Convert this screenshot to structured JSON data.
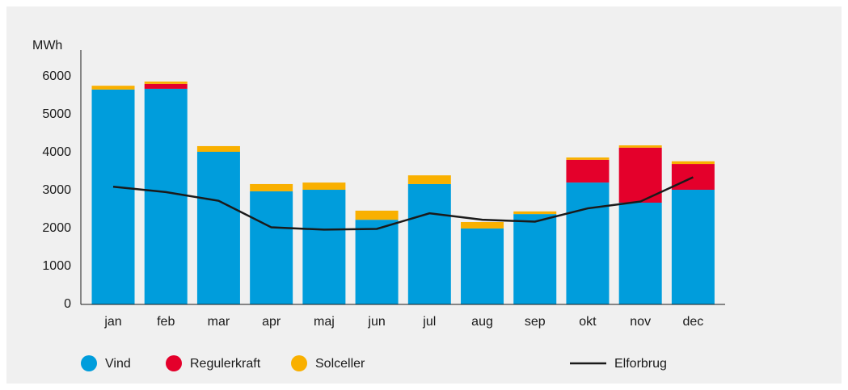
{
  "chart_data": {
    "type": "bar",
    "stacked": true,
    "ylabel": "MWh",
    "categories": [
      "jan",
      "feb",
      "mar",
      "apr",
      "maj",
      "jun",
      "jul",
      "aug",
      "sep",
      "okt",
      "nov",
      "dec"
    ],
    "series": [
      {
        "name": "Vind",
        "color": "#009ddc",
        "values": [
          5660,
          5680,
          4020,
          2980,
          3020,
          2230,
          3170,
          2000,
          2380,
          3210,
          2680,
          3020
        ]
      },
      {
        "name": "Regulerkraft",
        "color": "#e4002b",
        "values": [
          0,
          130,
          0,
          0,
          0,
          0,
          0,
          0,
          0,
          600,
          1450,
          680
        ]
      },
      {
        "name": "Solceller",
        "color": "#f9b000",
        "values": [
          100,
          60,
          150,
          190,
          190,
          240,
          230,
          170,
          70,
          60,
          60,
          70
        ]
      },
      {
        "name": "Elforbrug",
        "type": "line",
        "color": "#1a1a1a",
        "values": [
          3100,
          2960,
          2730,
          2030,
          1970,
          1990,
          2400,
          2230,
          2180,
          2530,
          2710,
          3350
        ]
      }
    ],
    "ylim": [
      0,
      6700
    ],
    "yticks": [
      0,
      1000,
      2000,
      3000,
      4000,
      5000,
      6000
    ],
    "grid": false
  }
}
